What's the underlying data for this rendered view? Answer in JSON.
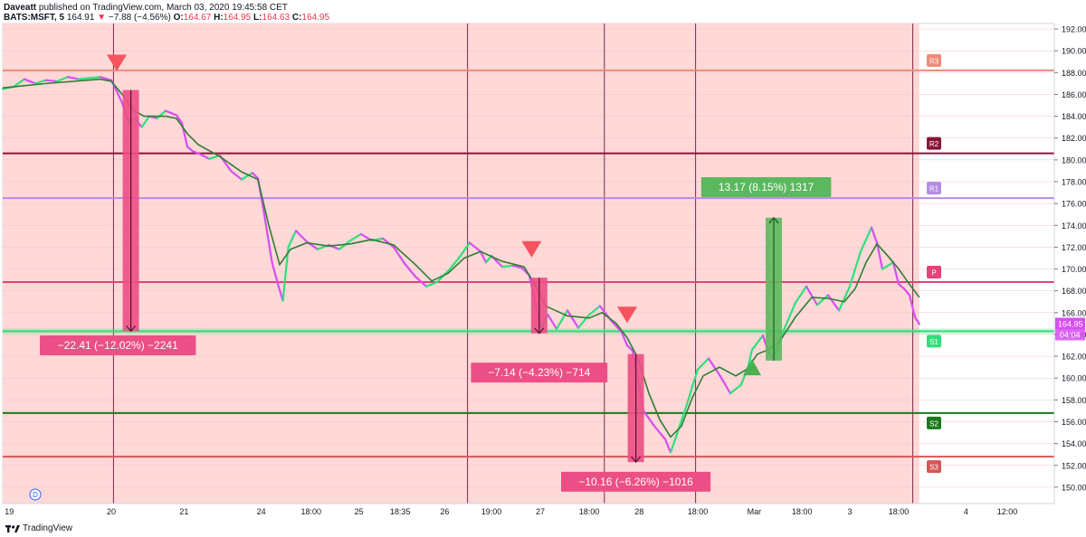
{
  "header": {
    "author": "Daveatt",
    "published": "published on TradingView.com, March 03, 2020 19:45:58 CET",
    "symbol": "BATS:MSFT, 5",
    "last": "164.91",
    "arrow": "▼",
    "change": "−7.88 (−4.56%)",
    "o_label": "O:",
    "o_val": "164.67",
    "h_label": "H:",
    "h_val": "164.95",
    "l_label": "L:",
    "l_val": "164.63",
    "c_label": "C:",
    "c_val": "164.95"
  },
  "footer": {
    "brand": "TradingView"
  },
  "colors": {
    "bg_shade": "#ffd8d8",
    "ema": "#2e7d32",
    "up": "#2ee07a",
    "down": "#d64ff2",
    "r3": "#f08a74",
    "r2": "#8a1538",
    "r1": "#b48be8",
    "p": "#e8407a",
    "s1": "#2ee07a",
    "s2": "#1b7a1b",
    "s3": "#d65656",
    "sell_box": "#ec4f86",
    "buy_box": "#5cb85c",
    "vline": "#7a2a48"
  },
  "chart_data": {
    "type": "line",
    "symbol": "BATS:MSFT",
    "timeframe": "5",
    "ylim": [
      148.5,
      192.5
    ],
    "y_ticks": [
      150,
      152,
      154,
      156,
      158,
      160,
      162,
      164,
      166,
      168,
      170,
      172,
      174,
      176,
      178,
      180,
      182,
      184,
      186,
      188,
      190,
      192
    ],
    "y_tick_labels": [
      "150.00",
      "152.00",
      "154.00",
      "156.00",
      "158.00",
      "160.00",
      "162.00",
      "164.00",
      "166.00",
      "168.00",
      "170.00",
      "172.00",
      "174.00",
      "176.00",
      "178.00",
      "180.00",
      "182.00",
      "184.00",
      "186.00",
      "188.00",
      "190.00",
      "192.00"
    ],
    "x_ticks": [
      {
        "label": "19",
        "x": 0.6
      },
      {
        "label": "20",
        "x": 10.0
      },
      {
        "label": "21",
        "x": 16.7
      },
      {
        "label": "24",
        "x": 23.8
      },
      {
        "label": "18:00",
        "x": 28.4
      },
      {
        "label": "25",
        "x": 32.8
      },
      {
        "label": "18:35",
        "x": 36.6
      },
      {
        "label": "26",
        "x": 40.7
      },
      {
        "label": "19:00",
        "x": 45.0
      },
      {
        "label": "27",
        "x": 49.5
      },
      {
        "label": "18:00",
        "x": 54.0
      },
      {
        "label": "28",
        "x": 58.6
      },
      {
        "label": "18:00",
        "x": 64.0
      },
      {
        "label": "Mar",
        "x": 69.2
      },
      {
        "label": "18:00",
        "x": 73.6
      },
      {
        "label": "3",
        "x": 78.0
      },
      {
        "label": "18:00",
        "x": 82.5
      },
      {
        "label": "4",
        "x": 88.7
      },
      {
        "label": "12:00",
        "x": 92.5
      }
    ],
    "x_range": [
      0,
      96.7
    ],
    "shade_end_x": 84.4,
    "session_lines_x": [
      10.2,
      42.8,
      55.4,
      63.8,
      83.8
    ],
    "price": {
      "name": "MSFT",
      "points": [
        [
          0,
          186.5
        ],
        [
          1,
          186.7
        ],
        [
          2,
          187.4
        ],
        [
          3,
          187.0
        ],
        [
          4,
          187.3
        ],
        [
          5,
          187.2
        ],
        [
          6,
          187.6
        ],
        [
          7,
          187.4
        ],
        [
          8,
          187.5
        ],
        [
          9,
          187.6
        ],
        [
          10,
          187.3
        ],
        [
          10.5,
          186.3
        ],
        [
          11,
          185.2
        ],
        [
          11.6,
          183.5
        ],
        [
          12.2,
          183.8
        ],
        [
          12.8,
          183.0
        ],
        [
          13.5,
          184.0
        ],
        [
          14.2,
          183.8
        ],
        [
          15,
          184.5
        ],
        [
          16,
          184.1
        ],
        [
          16.5,
          183.4
        ],
        [
          17,
          181.2
        ],
        [
          17.5,
          180.8
        ],
        [
          18,
          180.6
        ],
        [
          19,
          180.1
        ],
        [
          20,
          180.4
        ],
        [
          21,
          179.0
        ],
        [
          22,
          178.2
        ],
        [
          23,
          178.8
        ],
        [
          23.5,
          178.3
        ],
        [
          24,
          175.5
        ],
        [
          24.8,
          170.6
        ],
        [
          25.4,
          168.4
        ],
        [
          25.8,
          167.1
        ],
        [
          26.3,
          172.0
        ],
        [
          27,
          173.5
        ],
        [
          28,
          172.5
        ],
        [
          29,
          171.8
        ],
        [
          30,
          172.2
        ],
        [
          31,
          171.8
        ],
        [
          32,
          172.6
        ],
        [
          33,
          173.2
        ],
        [
          34,
          172.6
        ],
        [
          35,
          172.8
        ],
        [
          36,
          172.0
        ],
        [
          37,
          170.5
        ],
        [
          38,
          169.3
        ],
        [
          39,
          168.4
        ],
        [
          39.5,
          168.6
        ],
        [
          40,
          168.8
        ],
        [
          41,
          169.8
        ],
        [
          42,
          171.0
        ],
        [
          43,
          172.4
        ],
        [
          44,
          171.6
        ],
        [
          44.5,
          170.6
        ],
        [
          45,
          171.2
        ],
        [
          46,
          170.2
        ],
        [
          47,
          170.3
        ],
        [
          47.8,
          170.1
        ],
        [
          48.5,
          169.4
        ],
        [
          49,
          167.0
        ],
        [
          49.6,
          164.6
        ],
        [
          50.2,
          165.8
        ],
        [
          51,
          164.5
        ],
        [
          52,
          166.2
        ],
        [
          53,
          164.6
        ],
        [
          54,
          165.8
        ],
        [
          55,
          166.6
        ],
        [
          56,
          165.3
        ],
        [
          57,
          164.2
        ],
        [
          57.5,
          163.0
        ],
        [
          58,
          162.5
        ],
        [
          58.5,
          160.0
        ],
        [
          59,
          157.0
        ],
        [
          60,
          155.6
        ],
        [
          61,
          154.4
        ],
        [
          61.5,
          153.2
        ],
        [
          62,
          154.6
        ],
        [
          63,
          157.6
        ],
        [
          64,
          160.8
        ],
        [
          65,
          161.8
        ],
        [
          66,
          160.3
        ],
        [
          67,
          158.6
        ],
        [
          68,
          159.4
        ],
        [
          68.6,
          160.9
        ],
        [
          69,
          162.6
        ],
        [
          70,
          163.9
        ],
        [
          70.5,
          162.4
        ],
        [
          71,
          161.8
        ],
        [
          72,
          164.6
        ],
        [
          73,
          166.9
        ],
        [
          74,
          168.4
        ],
        [
          75,
          166.7
        ],
        [
          76,
          167.6
        ],
        [
          77,
          166.2
        ],
        [
          78,
          168.4
        ],
        [
          79,
          171.6
        ],
        [
          80,
          173.8
        ],
        [
          80.5,
          172.4
        ],
        [
          81,
          170.0
        ],
        [
          82,
          170.6
        ],
        [
          82.5,
          168.6
        ],
        [
          83,
          168.2
        ],
        [
          83.5,
          167.6
        ],
        [
          84,
          165.6
        ],
        [
          84.4,
          164.95
        ]
      ]
    },
    "ema": {
      "name": "EMA",
      "points": [
        [
          0,
          186.6
        ],
        [
          4,
          187.0
        ],
        [
          9,
          187.4
        ],
        [
          10,
          187.2
        ],
        [
          11,
          186.0
        ],
        [
          12,
          184.6
        ],
        [
          13,
          184.0
        ],
        [
          15,
          184.0
        ],
        [
          16,
          183.8
        ],
        [
          17,
          182.4
        ],
        [
          18,
          181.4
        ],
        [
          20,
          180.3
        ],
        [
          22,
          178.9
        ],
        [
          23.5,
          178.2
        ],
        [
          24.5,
          174.0
        ],
        [
          25.5,
          170.4
        ],
        [
          26.5,
          171.8
        ],
        [
          28,
          172.4
        ],
        [
          30,
          172.1
        ],
        [
          32,
          172.3
        ],
        [
          34,
          172.7
        ],
        [
          36,
          172.2
        ],
        [
          38,
          170.4
        ],
        [
          39.5,
          168.9
        ],
        [
          41,
          169.6
        ],
        [
          42.5,
          171.0
        ],
        [
          44,
          171.6
        ],
        [
          46,
          170.7
        ],
        [
          48,
          170.2
        ],
        [
          49,
          168.6
        ],
        [
          50,
          166.6
        ],
        [
          52,
          165.7
        ],
        [
          54,
          165.5
        ],
        [
          55.2,
          166.0
        ],
        [
          56.5,
          165.0
        ],
        [
          57.5,
          163.7
        ],
        [
          58.5,
          161.8
        ],
        [
          59.5,
          158.6
        ],
        [
          60.5,
          156.2
        ],
        [
          61.5,
          154.6
        ],
        [
          62.5,
          155.6
        ],
        [
          63.5,
          158.2
        ],
        [
          64.5,
          160.2
        ],
        [
          66,
          161.0
        ],
        [
          67.5,
          160.2
        ],
        [
          68.5,
          160.8
        ],
        [
          69.5,
          162.2
        ],
        [
          70.5,
          162.6
        ],
        [
          71.5,
          163.3
        ],
        [
          73,
          165.6
        ],
        [
          74.5,
          167.4
        ],
        [
          76,
          167.3
        ],
        [
          77.5,
          167.0
        ],
        [
          78.5,
          168.2
        ],
        [
          79.5,
          170.6
        ],
        [
          80.5,
          172.3
        ],
        [
          81.5,
          171.2
        ],
        [
          82.5,
          170.0
        ],
        [
          83.5,
          168.6
        ],
        [
          84.4,
          167.4
        ]
      ]
    },
    "levels": [
      {
        "name": "R3",
        "value": 188.2,
        "color_key": "r3",
        "badge": "R3"
      },
      {
        "name": "R2",
        "value": 180.6,
        "color_key": "r2",
        "badge": "R2"
      },
      {
        "name": "R1",
        "value": 176.5,
        "color_key": "r1",
        "badge": "R1"
      },
      {
        "name": "P",
        "value": 168.8,
        "color_key": "p",
        "badge": "P"
      },
      {
        "name": "S1",
        "value": 164.3,
        "color_key": "s1",
        "badge": "S1"
      },
      {
        "name": "S2",
        "value": 156.8,
        "color_key": "s2",
        "badge": "S2"
      },
      {
        "name": "S3",
        "value": 152.8,
        "color_key": "s3",
        "badge": "S3"
      }
    ],
    "current_price_label": "164.95",
    "countdown_label": "04:04",
    "session_marker": "D",
    "trades": [
      {
        "kind": "sell",
        "x": 11.8,
        "from": 186.4,
        "to": 164.3,
        "label": "−22.41 (−12.02%) −2241",
        "label_x": 10.6,
        "label_y": 163.0
      },
      {
        "kind": "sell",
        "x": 49.4,
        "from": 169.2,
        "to": 164.1,
        "label": "−7.14 (−4.23%) −714",
        "label_x": 49.4,
        "label_y": 160.5
      },
      {
        "kind": "sell",
        "x": 58.3,
        "from": 162.2,
        "to": 152.3,
        "label": "−10.16 (−6.26%) −1016",
        "label_x": 58.3,
        "label_y": 150.5
      },
      {
        "kind": "buy",
        "x": 71.0,
        "from": 161.6,
        "to": 174.7,
        "label": "13.17 (8.15%) 1317",
        "label_x": 70.3,
        "label_y": 177.5
      }
    ],
    "signals": [
      {
        "type": "sell",
        "x": 10.5,
        "y": 188.9
      },
      {
        "type": "sell",
        "x": 48.7,
        "y": 171.8
      },
      {
        "type": "sell",
        "x": 57.5,
        "y": 165.8
      },
      {
        "type": "buy",
        "x": 69.0,
        "y": 161.0
      }
    ]
  }
}
